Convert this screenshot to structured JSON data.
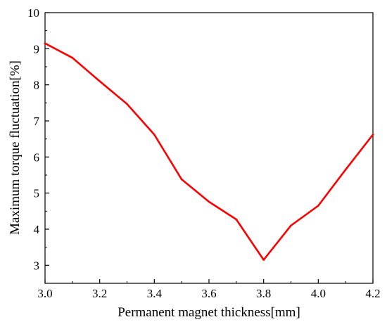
{
  "chart_data": {
    "type": "line",
    "title": "",
    "xlabel": "Permanent magnet thickness[mm]",
    "ylabel": "Maximum torque fluctuation[%]",
    "xlim": [
      3.0,
      4.2
    ],
    "ylim": [
      2.5,
      10
    ],
    "x_ticks": [
      "3.0",
      "3.2",
      "3.4",
      "3.6",
      "3.8",
      "4.0",
      "4.2"
    ],
    "y_ticks": [
      "3",
      "4",
      "5",
      "6",
      "7",
      "8",
      "9",
      "10"
    ],
    "grid": false,
    "legend": "none",
    "series": [
      {
        "color": "#ff0000",
        "x": [
          3.0,
          3.1,
          3.2,
          3.3,
          3.4,
          3.5,
          3.6,
          3.7,
          3.8,
          3.9,
          4.0,
          4.1,
          4.2
        ],
        "y": [
          9.15,
          8.75,
          8.1,
          7.47,
          6.62,
          5.38,
          4.76,
          4.27,
          3.15,
          4.1,
          4.65,
          5.65,
          6.62
        ]
      }
    ]
  }
}
